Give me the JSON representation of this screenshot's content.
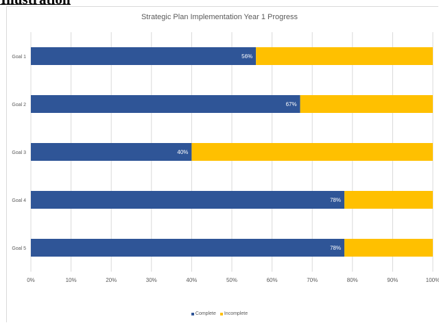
{
  "heading_fragment": "Illustration",
  "colors": {
    "complete": "#2F5597",
    "incomplete": "#FFC000",
    "grid": "#D9D9D9",
    "text": "#595959"
  },
  "chart_data": {
    "type": "bar",
    "orientation": "horizontal",
    "stacked": true,
    "title": "Strategic Plan Implementation Year 1 Progress",
    "categories": [
      "Goal 1",
      "Goal 2",
      "Goal 3",
      "Goal 4",
      "Goal 5"
    ],
    "series": [
      {
        "name": "Complete",
        "values": [
          56,
          67,
          40,
          78,
          78
        ],
        "labels": [
          "56%",
          "67%",
          "40%",
          "78%",
          "78%"
        ]
      },
      {
        "name": "Incomplete",
        "values": [
          44,
          33,
          60,
          22,
          22
        ]
      }
    ],
    "xlim": [
      0,
      100
    ],
    "xticks": [
      "0%",
      "10%",
      "20%",
      "30%",
      "40%",
      "50%",
      "60%",
      "70%",
      "80%",
      "90%",
      "100%"
    ],
    "grid": true,
    "legend": "bottom"
  }
}
